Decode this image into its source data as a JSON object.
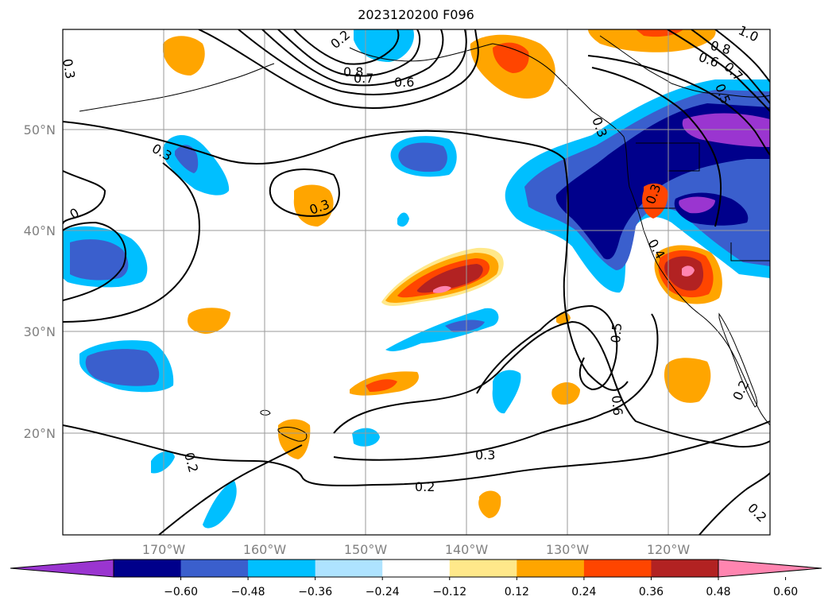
{
  "title": "2023120200 F096",
  "lat_labels": [
    "50°N",
    "40°N",
    "30°N",
    "20°N"
  ],
  "lon_labels": [
    "170°W",
    "160°W",
    "150°W",
    "140°W",
    "130°W",
    "120°W"
  ],
  "contour_labels": [
    "0.3",
    "0.8",
    "0.7",
    "0.6",
    "0.2",
    "0.8",
    "0.6",
    "0.7",
    "0.5",
    "0.3",
    "0.3",
    "0.3",
    "0",
    "0.4",
    "0.3",
    "0.5",
    "0.6",
    "0.3",
    "0.2",
    "0.2",
    "0.2",
    "0.2",
    "1.0"
  ],
  "colorbar": {
    "colors": [
      "#9a35d0",
      "#00008b",
      "#3a5fcd",
      "#00bfff",
      "#aee3ff",
      "#ffffff",
      "#ffe88a",
      "#ffa500",
      "#ff4500",
      "#b22222",
      "#ff85b0"
    ],
    "tick_labels": [
      "−0.60",
      "−0.48",
      "−0.36",
      "−0.24",
      "−0.12",
      "0.12",
      "0.24",
      "0.36",
      "0.48",
      "0.60"
    ]
  }
}
